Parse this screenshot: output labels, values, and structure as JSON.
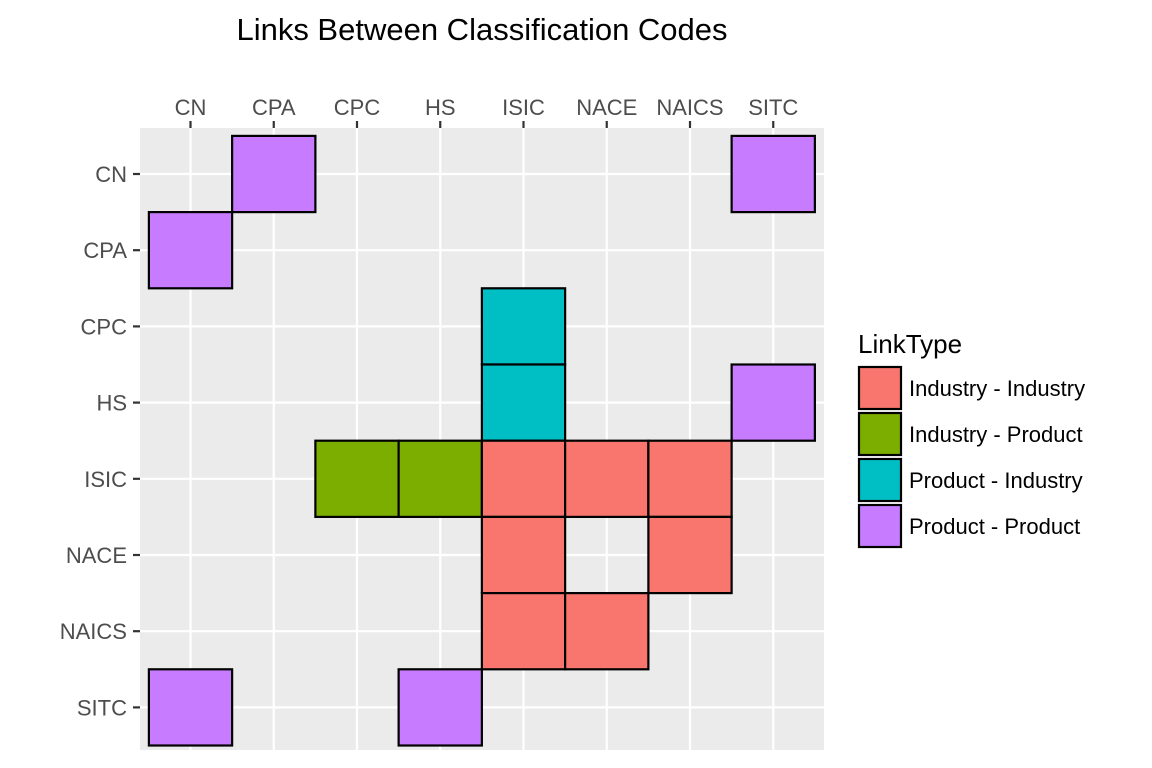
{
  "chart_data": {
    "type": "heatmap",
    "title": "Links Between Classification Codes",
    "x_position": "top",
    "xlabel": "",
    "ylabel": "",
    "x_categories": [
      "CN",
      "CPA",
      "CPC",
      "HS",
      "ISIC",
      "NACE",
      "NAICS",
      "SITC"
    ],
    "y_categories": [
      "CN",
      "CPA",
      "CPC",
      "HS",
      "ISIC",
      "NACE",
      "NAICS",
      "SITC"
    ],
    "grid": true,
    "legend_position": "right",
    "legend": {
      "title": "LinkType",
      "entries": [
        {
          "label": "Industry - Industry",
          "color": "#F8766D"
        },
        {
          "label": "Industry - Product",
          "color": "#7CAE00"
        },
        {
          "label": "Product - Industry",
          "color": "#00BFC4"
        },
        {
          "label": "Product - Product",
          "color": "#C77CFF"
        }
      ]
    },
    "cells": [
      {
        "x": "CPA",
        "y": "CN",
        "link_type": "Product - Product"
      },
      {
        "x": "SITC",
        "y": "CN",
        "link_type": "Product - Product"
      },
      {
        "x": "CN",
        "y": "CPA",
        "link_type": "Product - Product"
      },
      {
        "x": "ISIC",
        "y": "CPC",
        "link_type": "Product - Industry"
      },
      {
        "x": "ISIC",
        "y": "HS",
        "link_type": "Product - Industry"
      },
      {
        "x": "SITC",
        "y": "HS",
        "link_type": "Product - Product"
      },
      {
        "x": "CPC",
        "y": "ISIC",
        "link_type": "Industry - Product"
      },
      {
        "x": "HS",
        "y": "ISIC",
        "link_type": "Industry - Product"
      },
      {
        "x": "ISIC",
        "y": "ISIC",
        "link_type": "Industry - Industry"
      },
      {
        "x": "NACE",
        "y": "ISIC",
        "link_type": "Industry - Industry"
      },
      {
        "x": "NAICS",
        "y": "ISIC",
        "link_type": "Industry - Industry"
      },
      {
        "x": "ISIC",
        "y": "NACE",
        "link_type": "Industry - Industry"
      },
      {
        "x": "NAICS",
        "y": "NACE",
        "link_type": "Industry - Industry"
      },
      {
        "x": "ISIC",
        "y": "NAICS",
        "link_type": "Industry - Industry"
      },
      {
        "x": "NACE",
        "y": "NAICS",
        "link_type": "Industry - Industry"
      },
      {
        "x": "CN",
        "y": "SITC",
        "link_type": "Product - Product"
      },
      {
        "x": "HS",
        "y": "SITC",
        "link_type": "Product - Product"
      }
    ]
  },
  "colors": {
    "panel_background": "#EBEBEB",
    "grid": "#FFFFFF",
    "tile_border": "#000000",
    "tick_text": "#4D4D4D",
    "tick_mark": "#333333"
  }
}
